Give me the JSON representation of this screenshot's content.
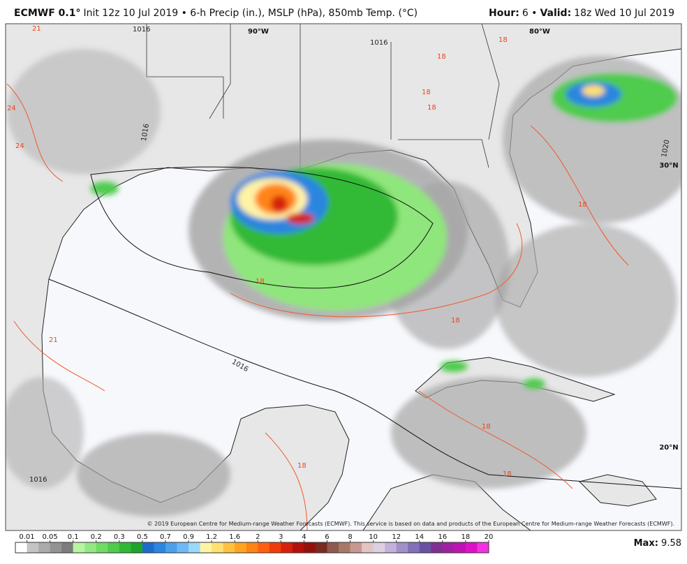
{
  "header": {
    "model": "ECMWF 0.1°",
    "description": "Init 12z 10 Jul 2019 • 6-h Precip (in.), MSLP (hPa), 850mb Temp. (°C)",
    "hour_label": "Hour:",
    "hour_value": "6 •",
    "valid_label": "Valid:",
    "valid_value": "18z Wed 10 Jul 2019"
  },
  "map": {
    "lon_labels": [
      "90°W",
      "80°W"
    ],
    "lat_labels": [
      "30°N",
      "20°N"
    ],
    "isobar_labels": [
      1016,
      1016,
      1016,
      1020,
      1016,
      1016
    ],
    "isotherm_labels": [
      21,
      24,
      24,
      18,
      18,
      18,
      18,
      18,
      18,
      21,
      18,
      18,
      18,
      18
    ],
    "copyright": "© 2019 European Centre for Medium-range Weather Forecasts (ECMWF). This service is based on data and products of the European Centre for Medium-range Weather Forecasts (ECMWF)."
  },
  "colorbar": {
    "ticks": [
      0.01,
      0.05,
      0.1,
      0.2,
      0.3,
      0.5,
      0.7,
      0.9,
      1.2,
      1.6,
      2,
      3,
      4,
      6,
      8,
      10,
      12,
      14,
      16,
      18,
      20
    ],
    "colors": [
      "#ffffff",
      "#c4c4c4",
      "#ababab",
      "#939393",
      "#7c7c7c",
      "#b6f5a2",
      "#93e883",
      "#70da66",
      "#4fcb4d",
      "#31b935",
      "#1ea42a",
      "#1d6ccc",
      "#2c86df",
      "#4ba0eb",
      "#6db9f4",
      "#9bd7fa",
      "#fff3a6",
      "#ffe070",
      "#ffc23f",
      "#ffa420",
      "#ff8412",
      "#ff6010",
      "#f03c0a",
      "#d6200a",
      "#b5100a",
      "#94100c",
      "#7a2a22",
      "#8c5a50",
      "#a87868",
      "#c89890",
      "#e2c4c4",
      "#dcd0e2",
      "#c2b2d8",
      "#a290c8",
      "#8270b8",
      "#6a52a2",
      "#803092",
      "#a020a2",
      "#c012b2",
      "#e010c8",
      "#f432e2"
    ],
    "max_label": "Max:",
    "max_value": 9.58
  }
}
